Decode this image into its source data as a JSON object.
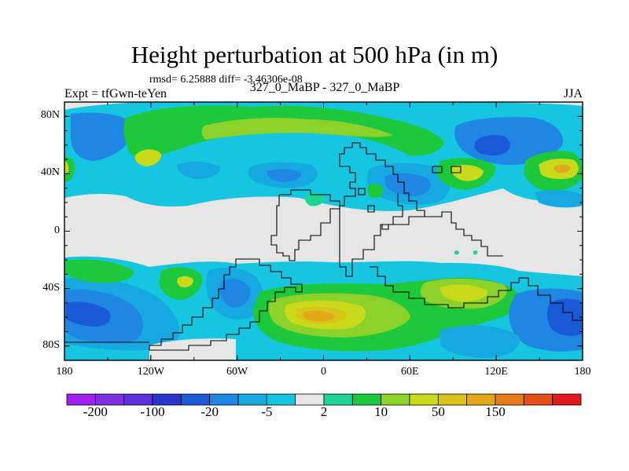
{
  "title": "Height perturbation at 500 hPa (in m)",
  "stats": "rmsd= 6.25888  diff= -3.46306e-08",
  "left_label": "Expt = tfGwn-teYen",
  "center_label": "327_0_MaBP - 327_0_MaBP",
  "right_label": "JJA",
  "y_ticks": [
    {
      "label": "80N",
      "lat": 80
    },
    {
      "label": "40N",
      "lat": 40
    },
    {
      "label": "0",
      "lat": 0
    },
    {
      "label": "40S",
      "lat": -40
    },
    {
      "label": "80S",
      "lat": -80
    }
  ],
  "x_ticks": [
    {
      "label": "180",
      "lon": -180
    },
    {
      "label": "120W",
      "lon": -120
    },
    {
      "label": "60W",
      "lon": -60
    },
    {
      "label": "0",
      "lon": 0
    },
    {
      "label": "60E",
      "lon": 60
    },
    {
      "label": "120E",
      "lon": 120
    },
    {
      "label": "180",
      "lon": 180
    }
  ],
  "colorbar": {
    "colors": [
      "#a020f0",
      "#7f2ee0",
      "#5b2fd9",
      "#2a35cc",
      "#1a5ad6",
      "#1f86e3",
      "#16a8e0",
      "#16c6e0",
      "#e6e6e6",
      "#1ed495",
      "#1ec83c",
      "#8cd22a",
      "#c9da1a",
      "#d9c41a",
      "#e3a81a",
      "#e67a1a",
      "#e64e1a",
      "#e01a1a"
    ],
    "labels": [
      {
        "text": "-200",
        "boundary": 1
      },
      {
        "text": "-100",
        "boundary": 3
      },
      {
        "text": "-20",
        "boundary": 5
      },
      {
        "text": "-5",
        "boundary": 7
      },
      {
        "text": "2",
        "boundary": 9
      },
      {
        "text": "10",
        "boundary": 11
      },
      {
        "text": "50",
        "boundary": 13
      },
      {
        "text": "150",
        "boundary": 15
      }
    ]
  },
  "map_colors": {
    "neutral": "#e6e6e6",
    "light_cyan": "#16c6e0",
    "cyan": "#16a8e0",
    "blue": "#1f86e3",
    "deep_blue": "#1a5ad6",
    "teal": "#1ed495",
    "green": "#1ec83c",
    "yellow_green": "#8cd22a",
    "yellow": "#c9da1a",
    "gold": "#d9c41a",
    "orange": "#e3a81a"
  }
}
